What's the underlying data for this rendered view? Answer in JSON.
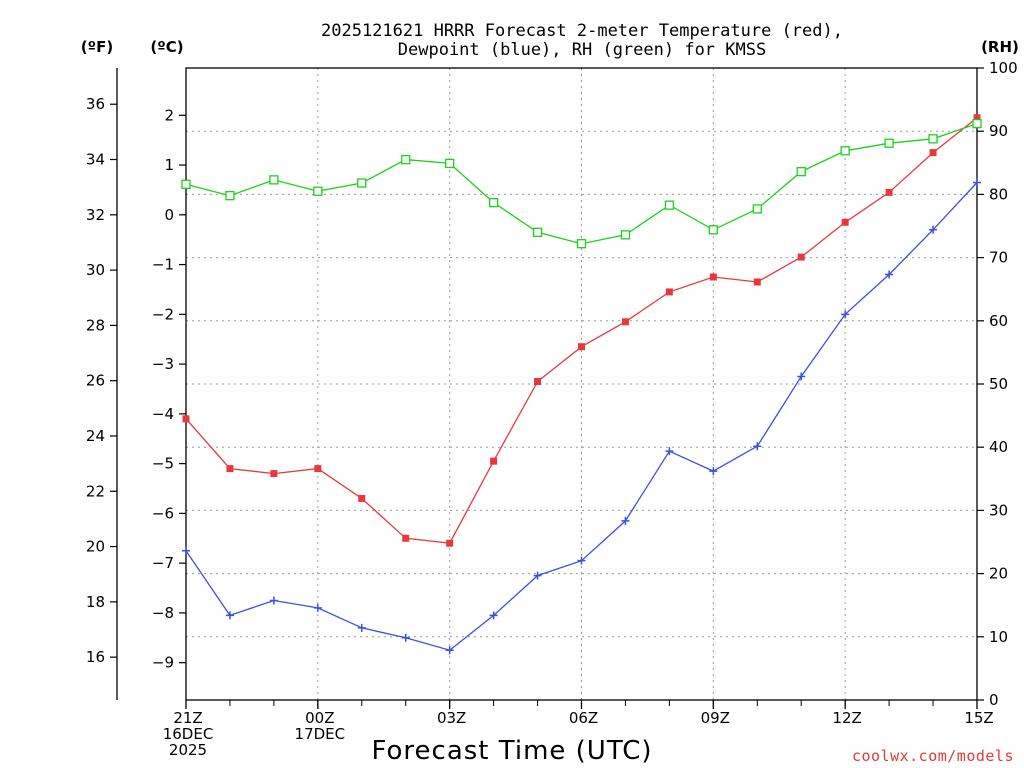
{
  "chart_data": {
    "type": "line",
    "title_line1": "2025121621 HRRR Forecast 2-meter Temperature (red),",
    "title_line2": "Dewpoint (blue), RH (green) for KMSS",
    "unit_f": "(ºF)",
    "unit_c": "(ºC)",
    "unit_rh": "(RH)",
    "xlabel": "Forecast Time (UTC)",
    "credit": "coolwx.com/models",
    "x_hours": [
      0,
      1,
      2,
      3,
      4,
      5,
      6,
      7,
      8,
      9,
      10,
      11,
      12,
      13,
      14,
      15,
      16,
      17,
      18
    ],
    "x_ticks": [
      {
        "hour": 0,
        "lines": [
          "21Z",
          "16DEC",
          "2025"
        ]
      },
      {
        "hour": 3,
        "lines": [
          "00Z",
          "17DEC"
        ]
      },
      {
        "hour": 6,
        "lines": [
          "03Z"
        ]
      },
      {
        "hour": 9,
        "lines": [
          "06Z"
        ]
      },
      {
        "hour": 12,
        "lines": [
          "09Z"
        ]
      },
      {
        "hour": 15,
        "lines": [
          "12Z"
        ]
      },
      {
        "hour": 18,
        "lines": [
          "15Z"
        ]
      }
    ],
    "y_celsius": {
      "range": [
        -9.75,
        2.95
      ],
      "ticks": [
        "2",
        "1",
        "0",
        "−1",
        "−2",
        "−3",
        "−4",
        "−5",
        "−6",
        "−7",
        "−8",
        "−9"
      ],
      "tick_values": [
        2,
        1,
        0,
        -1,
        -2,
        -3,
        -4,
        -5,
        -6,
        -7,
        -8,
        -9
      ]
    },
    "y_fahrenheit": {
      "ticks": [
        "36",
        "34",
        "32",
        "30",
        "28",
        "26",
        "24",
        "22",
        "20",
        "18",
        "16"
      ],
      "tick_values": [
        36,
        34,
        32,
        30,
        28,
        26,
        24,
        22,
        20,
        18,
        16
      ]
    },
    "y_rh": {
      "range": [
        0,
        100
      ],
      "ticks": [
        "100",
        "90",
        "80",
        "70",
        "60",
        "50",
        "40",
        "30",
        "20",
        "10",
        "0"
      ],
      "tick_values": [
        100,
        90,
        80,
        70,
        60,
        50,
        40,
        30,
        20,
        10,
        0
      ]
    },
    "series": [
      {
        "name": "Temperature",
        "axis": "celsius",
        "color": "#e8383d",
        "marker": "square-filled",
        "values": [
          -4.1,
          -5.1,
          -5.2,
          -5.1,
          -5.7,
          -6.5,
          -6.6,
          -4.95,
          -3.35,
          -2.65,
          -2.15,
          -1.55,
          -1.25,
          -1.35,
          -0.85,
          -0.15,
          0.45,
          1.25,
          1.95
        ]
      },
      {
        "name": "Dewpoint",
        "axis": "celsius",
        "color": "#3c50e0",
        "marker": "plus",
        "values": [
          -6.75,
          -8.05,
          -7.75,
          -7.9,
          -8.3,
          -8.5,
          -8.75,
          -8.05,
          -7.25,
          -6.95,
          -6.15,
          -4.75,
          -5.15,
          -4.65,
          -3.25,
          -2.0,
          -1.2,
          -0.3,
          0.65
        ]
      },
      {
        "name": "RH",
        "axis": "rh",
        "color": "#1ed01e",
        "marker": "square-open",
        "values": [
          81.6,
          79.8,
          82.3,
          80.5,
          81.8,
          85.5,
          84.9,
          78.7,
          74.0,
          72.2,
          73.6,
          78.3,
          74.4,
          77.7,
          83.6,
          86.9,
          88.1,
          88.8,
          91.2
        ]
      }
    ]
  }
}
